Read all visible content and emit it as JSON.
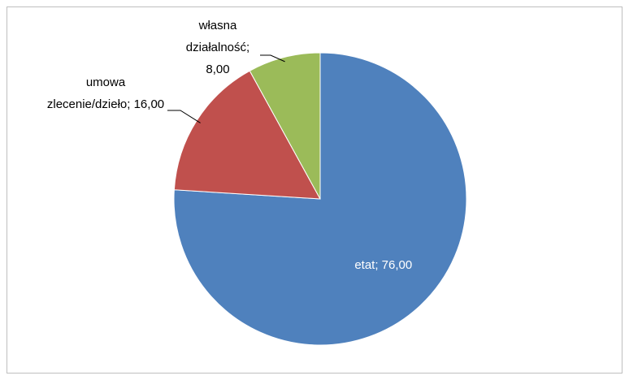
{
  "chart_data": {
    "type": "pie",
    "values": [
      76,
      16,
      8
    ],
    "value_labels": [
      "etat; 76,00",
      "umowa zlecenie/dzieło; 16,00",
      "własna działalność; 8,00"
    ],
    "colors": [
      "#4f81bd",
      "#c0504d",
      "#9bbb59"
    ]
  }
}
